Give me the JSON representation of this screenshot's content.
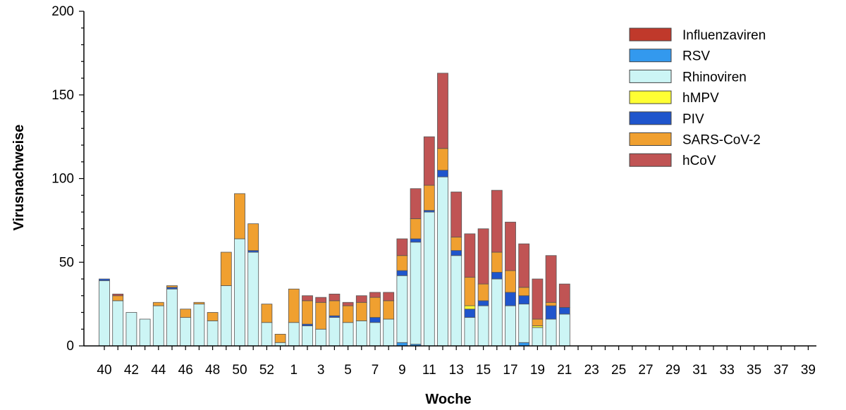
{
  "chart_data": {
    "type": "bar",
    "stacked": true,
    "xlabel": "Woche",
    "ylabel": "Virusnachweise",
    "ylim": [
      0,
      200
    ],
    "yticks": [
      0,
      50,
      100,
      150,
      200
    ],
    "grid": false,
    "legend_position": "top-right",
    "categories": [
      "40",
      "41",
      "42",
      "43",
      "44",
      "45",
      "46",
      "47",
      "48",
      "49",
      "50",
      "51",
      "52",
      "53",
      "1",
      "2",
      "3",
      "4",
      "5",
      "6",
      "7",
      "8",
      "9",
      "10",
      "11",
      "12",
      "13",
      "14",
      "15",
      "16",
      "17",
      "18",
      "19",
      "20",
      "21",
      "22",
      "23",
      "24",
      "25",
      "26",
      "27",
      "28",
      "29",
      "30",
      "31",
      "32",
      "33",
      "34",
      "35",
      "36",
      "37",
      "38",
      "39"
    ],
    "xtick_labels": [
      "40",
      "42",
      "44",
      "46",
      "48",
      "50",
      "52",
      "1",
      "3",
      "5",
      "7",
      "9",
      "11",
      "13",
      "15",
      "17",
      "19",
      "21",
      "23",
      "25",
      "27",
      "29",
      "31",
      "33",
      "35",
      "37",
      "39"
    ],
    "series": [
      {
        "name": "Influenzaviren",
        "color": "#c0392b",
        "values": [
          0,
          0,
          0,
          0,
          0,
          0,
          0,
          0,
          0,
          0,
          0,
          0,
          0,
          0,
          0,
          0,
          0,
          0,
          0,
          0,
          0,
          0,
          0,
          0,
          0,
          0,
          0,
          0,
          0,
          0,
          0,
          0,
          0,
          0,
          0,
          0,
          0,
          0,
          0,
          0,
          0,
          0,
          0,
          0,
          0,
          0,
          0,
          0,
          0,
          0,
          0,
          0,
          0
        ]
      },
      {
        "name": "RSV",
        "color": "#3399ee",
        "values": [
          0,
          0,
          0,
          0,
          0,
          0,
          0,
          0,
          0,
          0,
          0,
          0,
          0,
          0,
          0,
          0,
          0,
          0,
          0,
          0,
          0,
          0,
          2,
          1,
          0,
          0,
          0,
          0,
          0,
          0,
          0,
          2,
          0,
          0,
          0,
          0,
          0,
          0,
          0,
          0,
          0,
          0,
          0,
          0,
          0,
          0,
          0,
          0,
          0,
          0,
          0,
          0,
          0
        ]
      },
      {
        "name": "Rhinoviren",
        "color": "#ccf5f5",
        "values": [
          39,
          27,
          20,
          16,
          24,
          34,
          17,
          25,
          15,
          36,
          64,
          56,
          14,
          2,
          14,
          12,
          10,
          17,
          14,
          15,
          14,
          16,
          40,
          61,
          80,
          101,
          54,
          17,
          24,
          40,
          24,
          23,
          11,
          16,
          19,
          0,
          0,
          0,
          0,
          0,
          0,
          0,
          0,
          0,
          0,
          0,
          0,
          0,
          0,
          0,
          0,
          0,
          0
        ]
      },
      {
        "name": "hMPV",
        "color": "#ffff33",
        "values": [
          0,
          0,
          0,
          0,
          0,
          0,
          0,
          0,
          0,
          0,
          0,
          0,
          0,
          0,
          0,
          0,
          0,
          0,
          0,
          0,
          0,
          0,
          0,
          0,
          0,
          0,
          0,
          2,
          0,
          0,
          0,
          0,
          1,
          0,
          0,
          0,
          0,
          0,
          0,
          0,
          0,
          0,
          0,
          0,
          0,
          0,
          0,
          0,
          0,
          0,
          0,
          0,
          0
        ]
      },
      {
        "name": "PIV",
        "color": "#1f55cc",
        "values": [
          1,
          0,
          0,
          0,
          0,
          1,
          0,
          0,
          0,
          0,
          0,
          1,
          0,
          0,
          0,
          1,
          0,
          1,
          0,
          0,
          3,
          0,
          3,
          2,
          1,
          4,
          3,
          5,
          3,
          4,
          8,
          5,
          0,
          8,
          4,
          0,
          0,
          0,
          0,
          0,
          0,
          0,
          0,
          0,
          0,
          0,
          0,
          0,
          0,
          0,
          0,
          0,
          0
        ]
      },
      {
        "name": "SARS-CoV-2",
        "color": "#f0a030",
        "values": [
          0,
          3,
          0,
          0,
          2,
          1,
          5,
          1,
          5,
          20,
          27,
          16,
          11,
          5,
          20,
          14,
          16,
          9,
          10,
          11,
          12,
          11,
          9,
          12,
          15,
          13,
          8,
          17,
          10,
          12,
          13,
          5,
          4,
          2,
          0,
          0,
          0,
          0,
          0,
          0,
          0,
          0,
          0,
          0,
          0,
          0,
          0,
          0,
          0,
          0,
          0,
          0,
          0
        ]
      },
      {
        "name": "hCoV",
        "color": "#c05454",
        "values": [
          0,
          1,
          0,
          0,
          0,
          0,
          0,
          0,
          0,
          0,
          0,
          0,
          0,
          0,
          0,
          3,
          3,
          4,
          2,
          4,
          3,
          5,
          10,
          18,
          29,
          45,
          27,
          26,
          33,
          37,
          29,
          26,
          24,
          28,
          14,
          0,
          0,
          0,
          0,
          0,
          0,
          0,
          0,
          0,
          0,
          0,
          0,
          0,
          0,
          0,
          0,
          0,
          0
        ]
      }
    ]
  }
}
